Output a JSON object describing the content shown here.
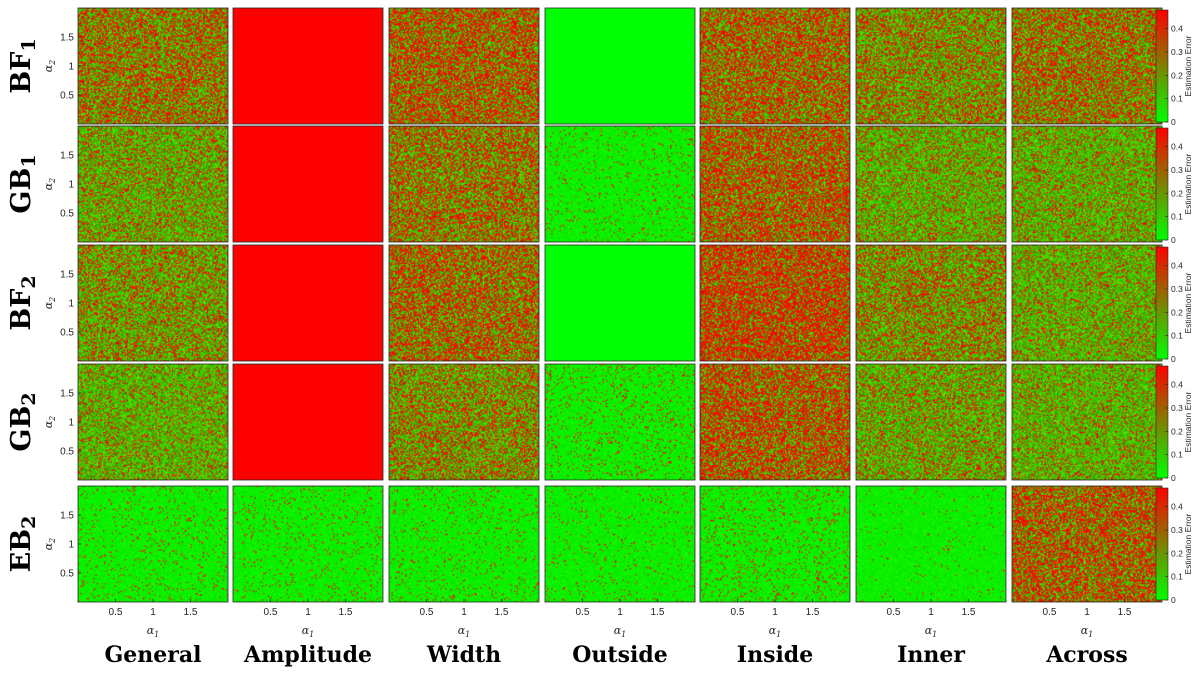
{
  "chart_data": {
    "type": "heatmap",
    "rows": [
      "BF1",
      "GB1",
      "BF2",
      "GB2",
      "EB2"
    ],
    "row_labels": [
      {
        "main": "BF",
        "sub": "1"
      },
      {
        "main": "GB",
        "sub": "1"
      },
      {
        "main": "BF",
        "sub": "2"
      },
      {
        "main": "GB",
        "sub": "2"
      },
      {
        "main": "EB",
        "sub": "2"
      }
    ],
    "columns": [
      "General",
      "Amplitude",
      "Width",
      "Outside",
      "Inside",
      "Inner",
      "Across"
    ],
    "xlabel": {
      "main": "α",
      "sub": "1"
    },
    "ylabel": {
      "main": "α",
      "sub": "2"
    },
    "xticks": [
      0.5,
      1,
      1.5
    ],
    "xtick_labels": [
      "0.5",
      "1",
      "1.5"
    ],
    "yticks": [
      0.5,
      1,
      1.5
    ],
    "ytick_labels": [
      "0.5",
      "1",
      "1.5"
    ],
    "xlim": [
      0,
      2
    ],
    "ylim": [
      0,
      2
    ],
    "colorbar": {
      "label": "Estimation Error",
      "range": [
        0,
        0.48
      ],
      "ticks": [
        0,
        0.1,
        0.2,
        0.3,
        0.4
      ],
      "tick_labels": [
        "0",
        "0.1",
        "0.2",
        "0.3",
        "0.4"
      ],
      "color_low": "#00ff00",
      "color_high": "#ff0000"
    },
    "approx_red_fraction": [
      [
        0.45,
        1.0,
        0.55,
        0.0,
        0.52,
        0.35,
        0.45
      ],
      [
        0.25,
        1.0,
        0.45,
        0.04,
        0.55,
        0.22,
        0.22
      ],
      [
        0.3,
        1.0,
        0.5,
        0.0,
        0.65,
        0.35,
        0.2
      ],
      [
        0.18,
        0.99,
        0.35,
        0.06,
        0.55,
        0.25,
        0.18
      ],
      [
        0.04,
        0.04,
        0.04,
        0.03,
        0.06,
        0.01,
        0.55
      ]
    ]
  }
}
